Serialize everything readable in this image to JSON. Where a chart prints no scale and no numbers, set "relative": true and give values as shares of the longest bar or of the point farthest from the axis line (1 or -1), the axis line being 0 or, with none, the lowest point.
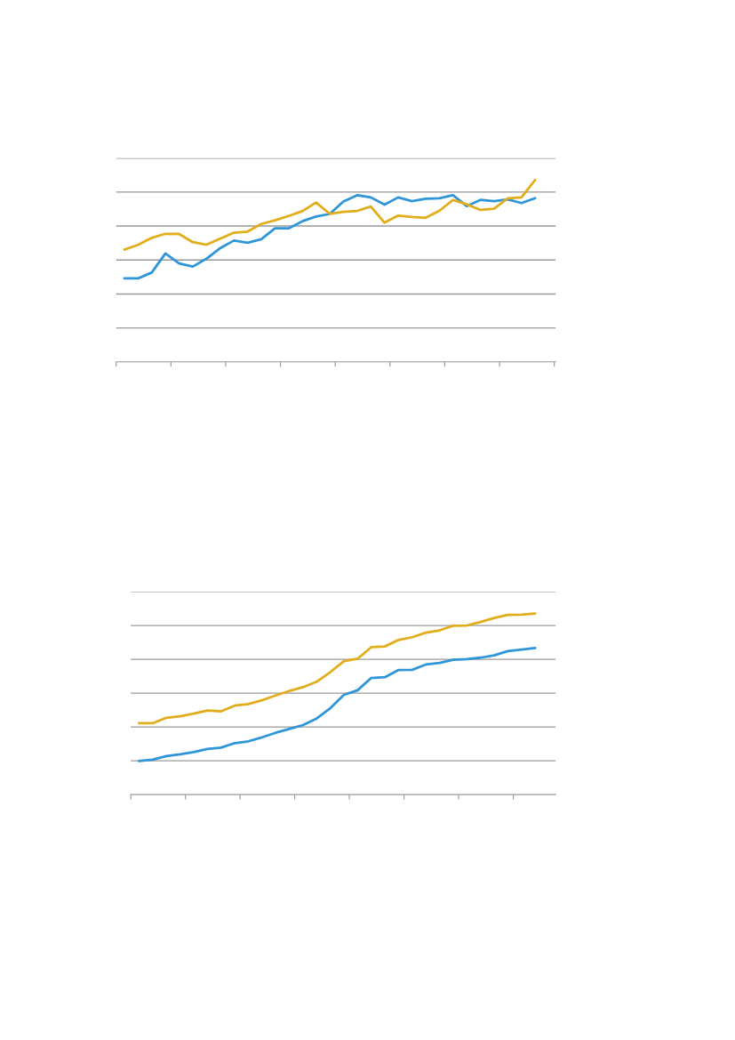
{
  "chart_data": [
    {
      "type": "line",
      "relative": true,
      "grid": "y",
      "categories": [
        null,
        null,
        null,
        null,
        null,
        null,
        null,
        null,
        null,
        null,
        null,
        null,
        null,
        null,
        null,
        null,
        null,
        null,
        null,
        null,
        null,
        null,
        null,
        null,
        null,
        null,
        null,
        null,
        null,
        null,
        null
      ],
      "series": [
        {
          "color": "#2e96d8",
          "values": [
            0.459,
            0.459,
            0.491,
            0.596,
            0.541,
            0.524,
            0.567,
            0.625,
            0.667,
            0.655,
            0.674,
            0.734,
            0.734,
            0.773,
            0.799,
            0.813,
            0.881,
            0.916,
            0.904,
            0.864,
            0.904,
            0.883,
            0.897,
            0.899,
            0.916,
            0.856,
            0.89,
            0.883,
            0.893,
            0.873,
            0.9
          ]
        },
        {
          "color": "#e2ad1a",
          "values": [
            0.617,
            0.643,
            0.682,
            0.704,
            0.703,
            0.658,
            0.644,
            0.677,
            0.71,
            0.716,
            0.758,
            0.778,
            0.802,
            0.828,
            0.876,
            0.814,
            0.825,
            0.83,
            0.854,
            0.765,
            0.804,
            0.797,
            0.792,
            0.83,
            0.89,
            0.866,
            0.835,
            0.842,
            0.899,
            0.904,
            1.0
          ]
        }
      ]
    },
    {
      "type": "line",
      "relative": true,
      "grid": "y",
      "categories": [
        null,
        null,
        null,
        null,
        null,
        null,
        null,
        null,
        null,
        null,
        null,
        null,
        null,
        null,
        null,
        null,
        null,
        null,
        null,
        null,
        null,
        null,
        null,
        null,
        null,
        null,
        null,
        null,
        null,
        null
      ],
      "series": [
        {
          "color": "#2e96d8",
          "values": [
            0.186,
            0.193,
            0.212,
            0.222,
            0.235,
            0.252,
            0.259,
            0.284,
            0.294,
            0.316,
            0.341,
            0.362,
            0.384,
            0.42,
            0.477,
            0.551,
            0.576,
            0.644,
            0.648,
            0.688,
            0.689,
            0.718,
            0.727,
            0.744,
            0.748,
            0.756,
            0.769,
            0.792,
            0.801,
            0.809
          ]
        },
        {
          "color": "#e2ad1a",
          "values": [
            0.394,
            0.394,
            0.424,
            0.432,
            0.447,
            0.464,
            0.46,
            0.491,
            0.5,
            0.521,
            0.547,
            0.572,
            0.593,
            0.623,
            0.676,
            0.737,
            0.75,
            0.814,
            0.818,
            0.854,
            0.869,
            0.894,
            0.907,
            0.932,
            0.934,
            0.953,
            0.975,
            0.992,
            0.994,
            1.0
          ]
        }
      ]
    }
  ]
}
